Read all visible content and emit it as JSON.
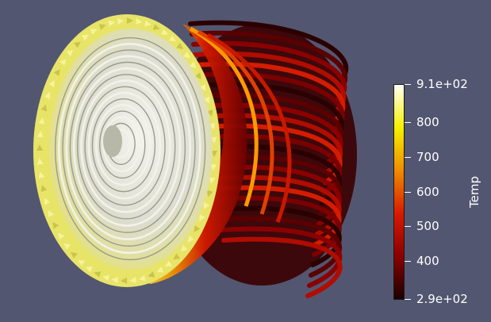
{
  "scene": {
    "background_color": "#535670",
    "render": "streamline tubes and glyph arrows of a swirling flow colored by temperature",
    "colormap": [
      "#fffff5",
      "#f5f000",
      "#f08c00",
      "#d91a00",
      "#8c0000",
      "#1a0000"
    ]
  },
  "colorbar": {
    "title": "Temp",
    "max_label": "9.1e+02",
    "min_label": "2.9e+02",
    "range": [
      290,
      910
    ],
    "ticks": [
      {
        "value": 910,
        "label": "9.1e+02"
      },
      {
        "value": 800,
        "label": "800"
      },
      {
        "value": 700,
        "label": "700"
      },
      {
        "value": 600,
        "label": "600"
      },
      {
        "value": 500,
        "label": "500"
      },
      {
        "value": 400,
        "label": "400"
      },
      {
        "value": 290,
        "label": "2.9e+02"
      }
    ]
  }
}
